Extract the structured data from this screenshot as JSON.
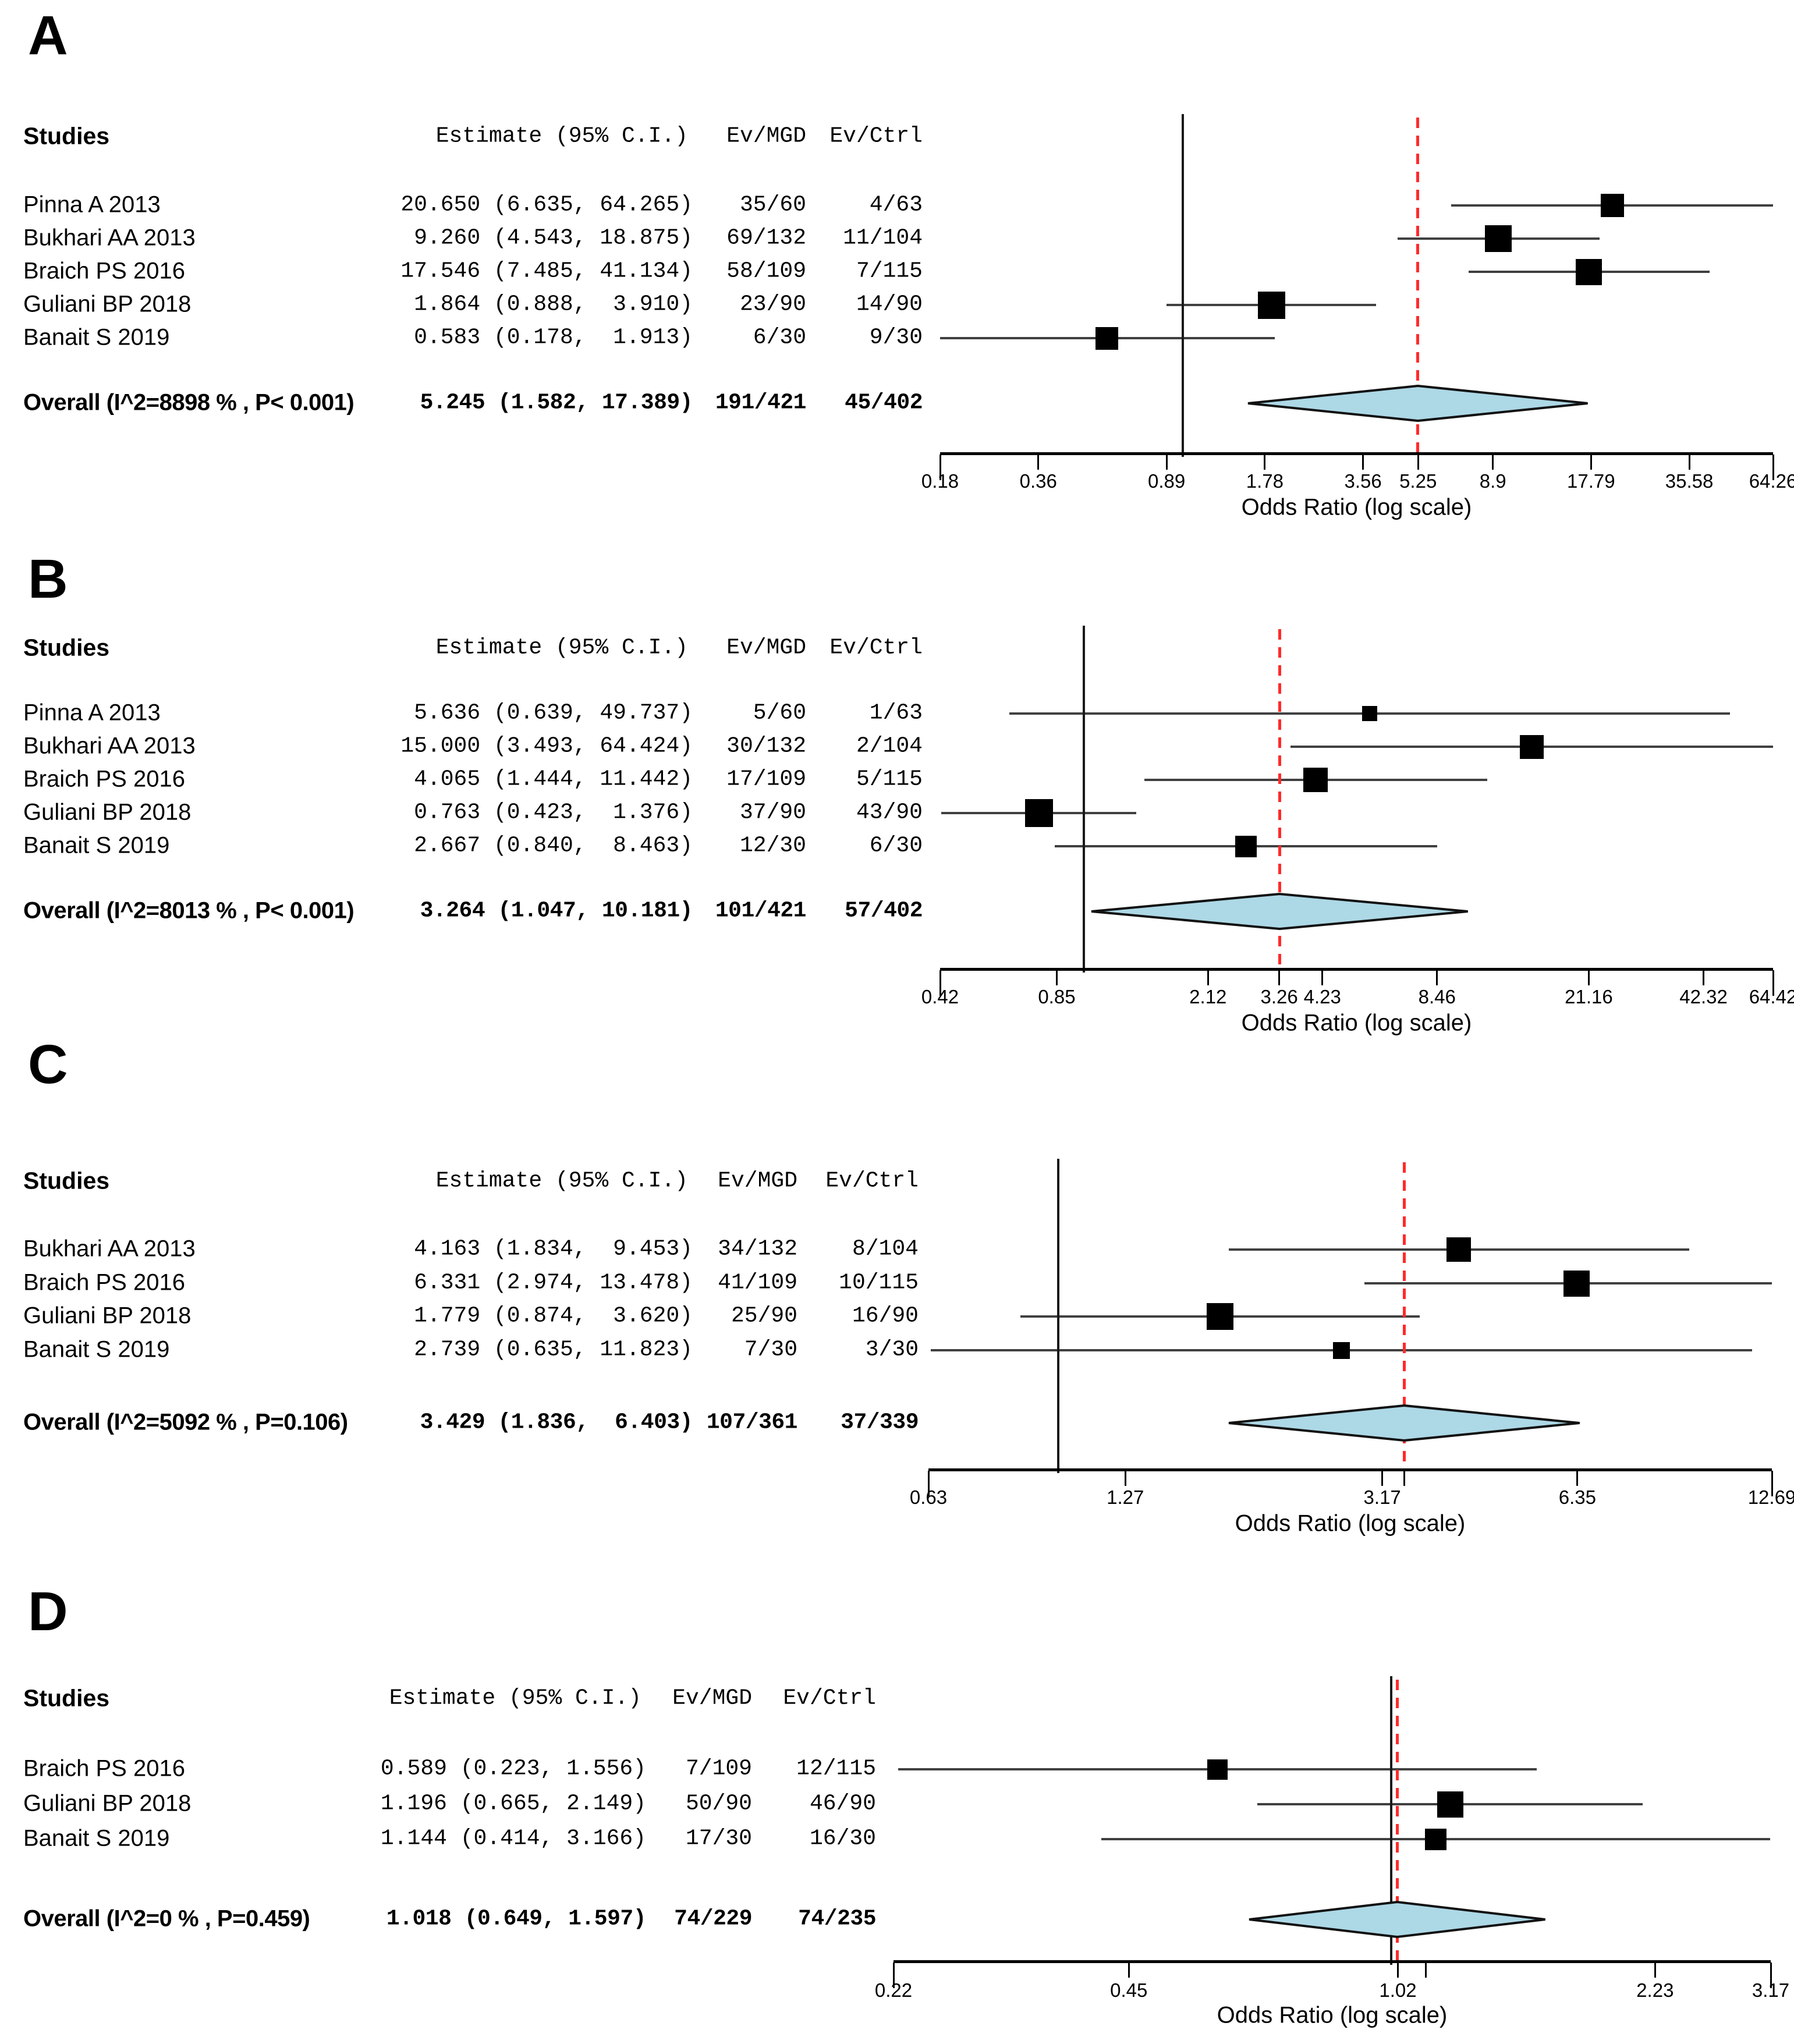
{
  "figure": {
    "xlabel": "Odds Ratio (log scale)"
  },
  "colors": {
    "diamond_fill": "#ADD8E6",
    "diamond_stroke": "#111111",
    "overall_dashed_line": "#ff2a2a",
    "reference_line": "#1a1a1a",
    "ci_line": "#404040",
    "marker": "#000000"
  },
  "chart_data": [
    {
      "type": "forest",
      "panel": "A",
      "xlabel": "Odds Ratio (log scale)",
      "columns": {
        "studies": "Studies",
        "estimate": "Estimate (95% C.I.)",
        "ev_mgd": "Ev/MGD",
        "ev_ctrl": "Ev/Ctrl"
      },
      "axis": {
        "min": 0.18,
        "max": 64.26,
        "ref": 1,
        "ticks": [
          0.18,
          0.36,
          0.89,
          1.78,
          3.56,
          5.25,
          8.9,
          17.79,
          35.58,
          64.26
        ],
        "tick_labels": [
          "0.18",
          "0.36",
          "0.89",
          "1.78",
          "3.56",
          "5.25",
          "8.9",
          "17.79",
          "35.58",
          "64.26"
        ],
        "minor_ticks": []
      },
      "rows": [
        {
          "study": "Pinna A 2013",
          "estimate_text": "20.650 (6.635, 64.265)",
          "est": 20.65,
          "lo": 6.635,
          "hi": 64.265,
          "ev_mgd": "35/60",
          "ev_ctrl": "4/63",
          "weight": 40
        },
        {
          "study": "Bukhari AA 2013",
          "estimate_text": " 9.260 (4.543, 18.875)",
          "est": 9.26,
          "lo": 4.543,
          "hi": 18.875,
          "ev_mgd": "69/132",
          "ev_ctrl": "11/104",
          "weight": 46
        },
        {
          "study": "Braich PS 2016",
          "estimate_text": "17.546 (7.485, 41.134)",
          "est": 17.546,
          "lo": 7.485,
          "hi": 41.134,
          "ev_mgd": "58/109",
          "ev_ctrl": "7/115",
          "weight": 45
        },
        {
          "study": "Guliani BP 2018",
          "estimate_text": " 1.864 (0.888,  3.910)",
          "est": 1.864,
          "lo": 0.888,
          "hi": 3.91,
          "ev_mgd": "23/90",
          "ev_ctrl": "14/90",
          "weight": 47
        },
        {
          "study": "Banait S 2019",
          "estimate_text": " 0.583 (0.178,  1.913)",
          "est": 0.583,
          "lo": 0.178,
          "hi": 1.913,
          "ev_mgd": "6/30",
          "ev_ctrl": "9/30",
          "weight": 39
        }
      ],
      "overall": {
        "label": "Overall (I^2=8898 % , P< 0.001)",
        "estimate_text": "5.245 (1.582, 17.389)",
        "est": 5.245,
        "lo": 1.582,
        "hi": 17.389,
        "ev_mgd": "191/421",
        "ev_ctrl": "45/402"
      }
    },
    {
      "type": "forest",
      "panel": "B",
      "xlabel": "Odds Ratio (log scale)",
      "columns": {
        "studies": "Studies",
        "estimate": "Estimate (95% C.I.)",
        "ev_mgd": "Ev/MGD",
        "ev_ctrl": "Ev/Ctrl"
      },
      "axis": {
        "min": 0.42,
        "max": 64.42,
        "ref": 1,
        "ticks": [
          0.42,
          0.85,
          2.12,
          3.26,
          4.23,
          8.46,
          21.16,
          42.32,
          64.42
        ],
        "tick_labels": [
          "0.42",
          "0.85",
          "2.12",
          "3.26",
          "4.23",
          "8.46",
          "21.16",
          "42.32",
          "64.42"
        ],
        "minor_ticks": []
      },
      "rows": [
        {
          "study": "Pinna A 2013",
          "estimate_text": " 5.636 (0.639, 49.737)",
          "est": 5.636,
          "lo": 0.639,
          "hi": 49.737,
          "ev_mgd": "5/60",
          "ev_ctrl": "1/63",
          "weight": 26
        },
        {
          "study": "Bukhari AA 2013",
          "estimate_text": "15.000 (3.493, 64.424)",
          "est": 15.0,
          "lo": 3.493,
          "hi": 64.424,
          "ev_mgd": "30/132",
          "ev_ctrl": "2/104",
          "weight": 41
        },
        {
          "study": "Braich PS 2016",
          "estimate_text": " 4.065 (1.444, 11.442)",
          "est": 4.065,
          "lo": 1.444,
          "hi": 11.442,
          "ev_mgd": "17/109",
          "ev_ctrl": "5/115",
          "weight": 42
        },
        {
          "study": "Guliani BP 2018",
          "estimate_text": " 0.763 (0.423,  1.376)",
          "est": 0.763,
          "lo": 0.423,
          "hi": 1.376,
          "ev_mgd": "37/90",
          "ev_ctrl": "43/90",
          "weight": 48
        },
        {
          "study": "Banait S 2019",
          "estimate_text": " 2.667 (0.840,  8.463)",
          "est": 2.667,
          "lo": 0.84,
          "hi": 8.463,
          "ev_mgd": "12/30",
          "ev_ctrl": "6/30",
          "weight": 37
        }
      ],
      "overall": {
        "label": "Overall (I^2=8013 % , P< 0.001)",
        "estimate_text": "3.264 (1.047, 10.181)",
        "est": 3.264,
        "lo": 1.047,
        "hi": 10.181,
        "ev_mgd": "101/421",
        "ev_ctrl": "57/402"
      }
    },
    {
      "type": "forest",
      "panel": "C",
      "xlabel": "Odds Ratio (log scale)",
      "columns": {
        "studies": "Studies",
        "estimate": "Estimate (95% C.I.)",
        "ev_mgd": "Ev/MGD",
        "ev_ctrl": "Ev/Ctrl"
      },
      "axis": {
        "min": 0.63,
        "max": 12.69,
        "ref": 1,
        "ticks": [
          0.63,
          1.27,
          3.17,
          6.35,
          12.69
        ],
        "tick_labels": [
          "0.63",
          "1.27",
          "3.17",
          "6.35",
          "12.69"
        ],
        "minor_ticks": [
          3.43
        ]
      },
      "rows": [
        {
          "study": "Bukhari AA 2013",
          "estimate_text": "4.163 (1.834,  9.453)",
          "est": 4.163,
          "lo": 1.834,
          "hi": 9.453,
          "ev_mgd": "34/132",
          "ev_ctrl": "8/104",
          "weight": 42
        },
        {
          "study": "Braich PS 2016",
          "estimate_text": "6.331 (2.974, 13.478)",
          "est": 6.331,
          "lo": 2.974,
          "hi": 13.478,
          "ev_mgd": "41/109",
          "ev_ctrl": "10/115",
          "weight": 45
        },
        {
          "study": "Guliani BP 2018",
          "estimate_text": "1.779 (0.874,  3.620)",
          "est": 1.779,
          "lo": 0.874,
          "hi": 3.62,
          "ev_mgd": "25/90",
          "ev_ctrl": "16/90",
          "weight": 46
        },
        {
          "study": "Banait S 2019",
          "estimate_text": "2.739 (0.635, 11.823)",
          "est": 2.739,
          "lo": 0.635,
          "hi": 11.823,
          "ev_mgd": "7/30",
          "ev_ctrl": "3/30",
          "weight": 29
        }
      ],
      "overall": {
        "label": "Overall (I^2=5092 % , P=0.106)",
        "estimate_text": "3.429 (1.836,  6.403)",
        "est": 3.429,
        "lo": 1.836,
        "hi": 6.403,
        "ev_mgd": "107/361",
        "ev_ctrl": "37/339"
      }
    },
    {
      "type": "forest",
      "panel": "D",
      "xlabel": "Odds Ratio (log scale)",
      "columns": {
        "studies": "Studies",
        "estimate": "Estimate (95% C.I.)",
        "ev_mgd": "Ev/MGD",
        "ev_ctrl": "Ev/Ctrl"
      },
      "axis": {
        "min": 0.22,
        "max": 3.17,
        "ref": 1,
        "ticks": [
          0.22,
          0.45,
          1.02,
          2.23,
          3.17
        ],
        "tick_labels": [
          "0.22",
          "0.45",
          "1.02",
          "2.23",
          "3.17"
        ],
        "minor_ticks": [
          1.11
        ]
      },
      "rows": [
        {
          "study": "Braich PS 2016",
          "estimate_text": "0.589 (0.223, 1.556)",
          "est": 0.589,
          "lo": 0.223,
          "hi": 1.556,
          "ev_mgd": "7/109",
          "ev_ctrl": "12/115",
          "weight": 35
        },
        {
          "study": "Guliani BP 2018",
          "estimate_text": "1.196 (0.665, 2.149)",
          "est": 1.196,
          "lo": 0.665,
          "hi": 2.149,
          "ev_mgd": "50/90",
          "ev_ctrl": "46/90",
          "weight": 45
        },
        {
          "study": "Banait S 2019",
          "estimate_text": "1.144 (0.414, 3.166)",
          "est": 1.144,
          "lo": 0.414,
          "hi": 3.166,
          "ev_mgd": "17/30",
          "ev_ctrl": "16/30",
          "weight": 37
        }
      ],
      "overall": {
        "label": "Overall (I^2=0 % , P=0.459)",
        "estimate_text": "1.018 (0.649, 1.597)",
        "est": 1.018,
        "lo": 0.649,
        "hi": 1.597,
        "ev_mgd": "74/229",
        "ev_ctrl": "74/235"
      }
    }
  ]
}
